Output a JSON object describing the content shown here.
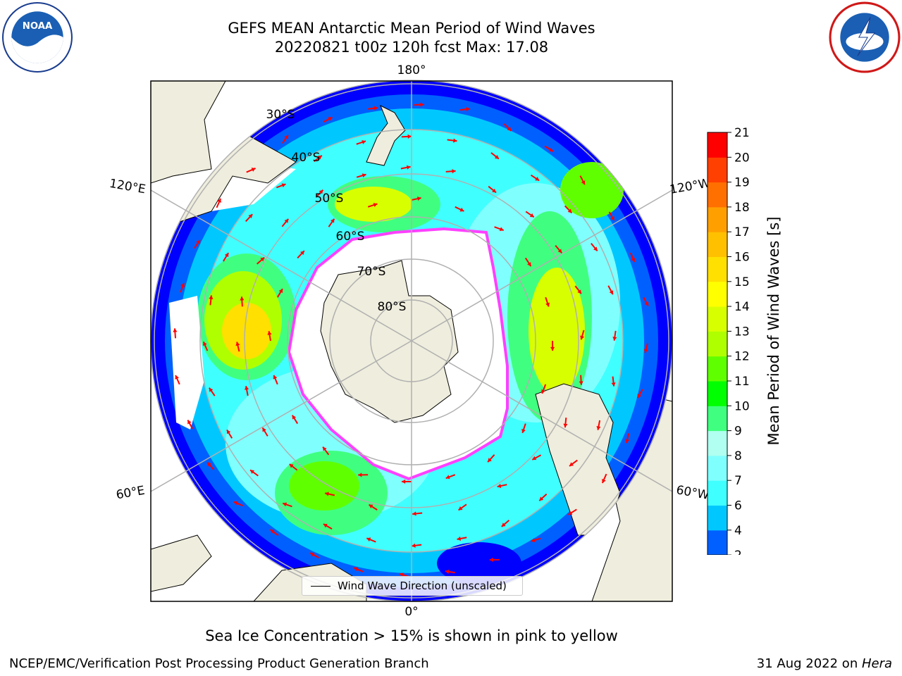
{
  "title": {
    "line1": "GEFS MEAN Antarctic Mean Period of Wind Waves",
    "line2": "20220821 t00z 120h fcst   Max: 17.08"
  },
  "logos": {
    "left": "noaa-logo",
    "right": "nws-logo"
  },
  "map": {
    "longitude_labels": {
      "top": "180°",
      "bottom": "0°",
      "upper_left": "120°E",
      "upper_right": "120°W",
      "lower_left": "60°E",
      "lower_right": "60°W"
    },
    "latitude_labels": [
      "30°S",
      "40°S",
      "50°S",
      "60°S",
      "70°S",
      "80°S"
    ],
    "legend_label": "Wind Wave Direction (unscaled)",
    "colors": {
      "land": "#efeddd",
      "ice_edge": "#ff40ff",
      "arrow": "#ff0000",
      "grid": "#b0b0b0"
    }
  },
  "colorbar": {
    "label": "Mean Period of Wind Waves [s]",
    "ticks": [
      "2",
      "4",
      "6",
      "7",
      "8",
      "9",
      "10",
      "11",
      "12",
      "13",
      "14",
      "15",
      "16",
      "17",
      "18",
      "19",
      "20",
      "21"
    ],
    "colors": [
      "#0060ff",
      "#00c8ff",
      "#40ffff",
      "#80ffff",
      "#b0fff0",
      "#40ff80",
      "#00ff00",
      "#60ff00",
      "#b0ff00",
      "#d8ff00",
      "#ffff00",
      "#ffe000",
      "#ffc000",
      "#ffa000",
      "#ff7000",
      "#ff4000",
      "#ff0000"
    ],
    "extend_color": "#0000ff"
  },
  "captions": {
    "ice": "Sea Ice Concentration > 15% is shown in pink to yellow",
    "footer_left": "NCEP/EMC/Verification Post Processing Product Generation Branch",
    "footer_date": "31 Aug 2022 on ",
    "footer_machine": "Hera"
  }
}
